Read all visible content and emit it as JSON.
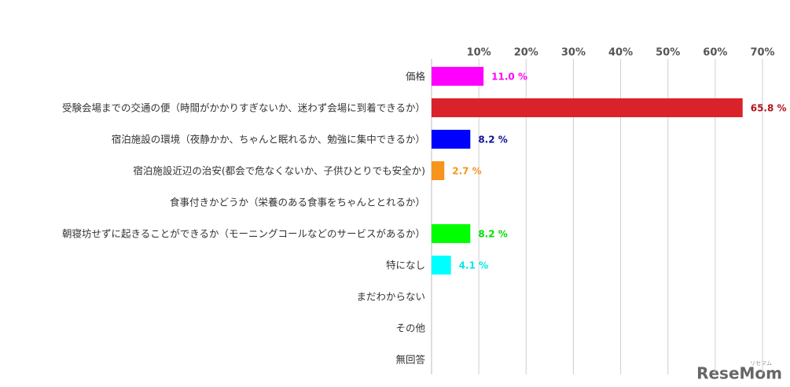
{
  "chart_data": {
    "type": "bar",
    "orientation": "horizontal",
    "categories": [
      "価格",
      "受験会場までの交通の便（時間がかかりすぎないか、迷わず会場に到着できるか）",
      "宿泊施設の環境（夜静かか、ちゃんと眠れるか、勉強に集中できるか）",
      "宿泊施設近辺の治安(都会で危なくないか、子供ひとりでも安全か)",
      "食事付きかどうか（栄養のある食事をちゃんととれるか）",
      "朝寝坊せずに起きることができるか（モーニングコールなどのサービスがあるか）",
      "特になし",
      "まだわからない",
      "その他",
      "無回答"
    ],
    "values": [
      11.0,
      65.8,
      8.2,
      2.7,
      0,
      8.2,
      4.1,
      0,
      0,
      0
    ],
    "value_labels": [
      "11.0 %",
      "65.8 %",
      "8.2 %",
      "2.7 %",
      null,
      "8.2 %",
      "4.1 %",
      null,
      null,
      null
    ],
    "colors": [
      "#ff00ff",
      "#d9222a",
      "#0000ff",
      "#f7941d",
      null,
      "#00ff00",
      "#00ffff",
      null,
      null,
      null
    ],
    "label_colors": [
      "#ff00ff",
      "#b0141c",
      "#10109a",
      "#f7941d",
      null,
      "#00e000",
      "#00e8e8",
      null,
      null,
      null
    ],
    "xlim": [
      0,
      70
    ],
    "xticks": [
      {
        "value": 10,
        "label": "10%"
      },
      {
        "value": 20,
        "label": "20%"
      },
      {
        "value": 30,
        "label": "30%"
      },
      {
        "value": 40,
        "label": "40%"
      },
      {
        "value": 50,
        "label": "50%"
      },
      {
        "value": 60,
        "label": "60%"
      },
      {
        "value": 70,
        "label": "70%"
      }
    ],
    "grid": true,
    "watermark_ruby": "リセマム",
    "watermark": "ReseMom"
  }
}
